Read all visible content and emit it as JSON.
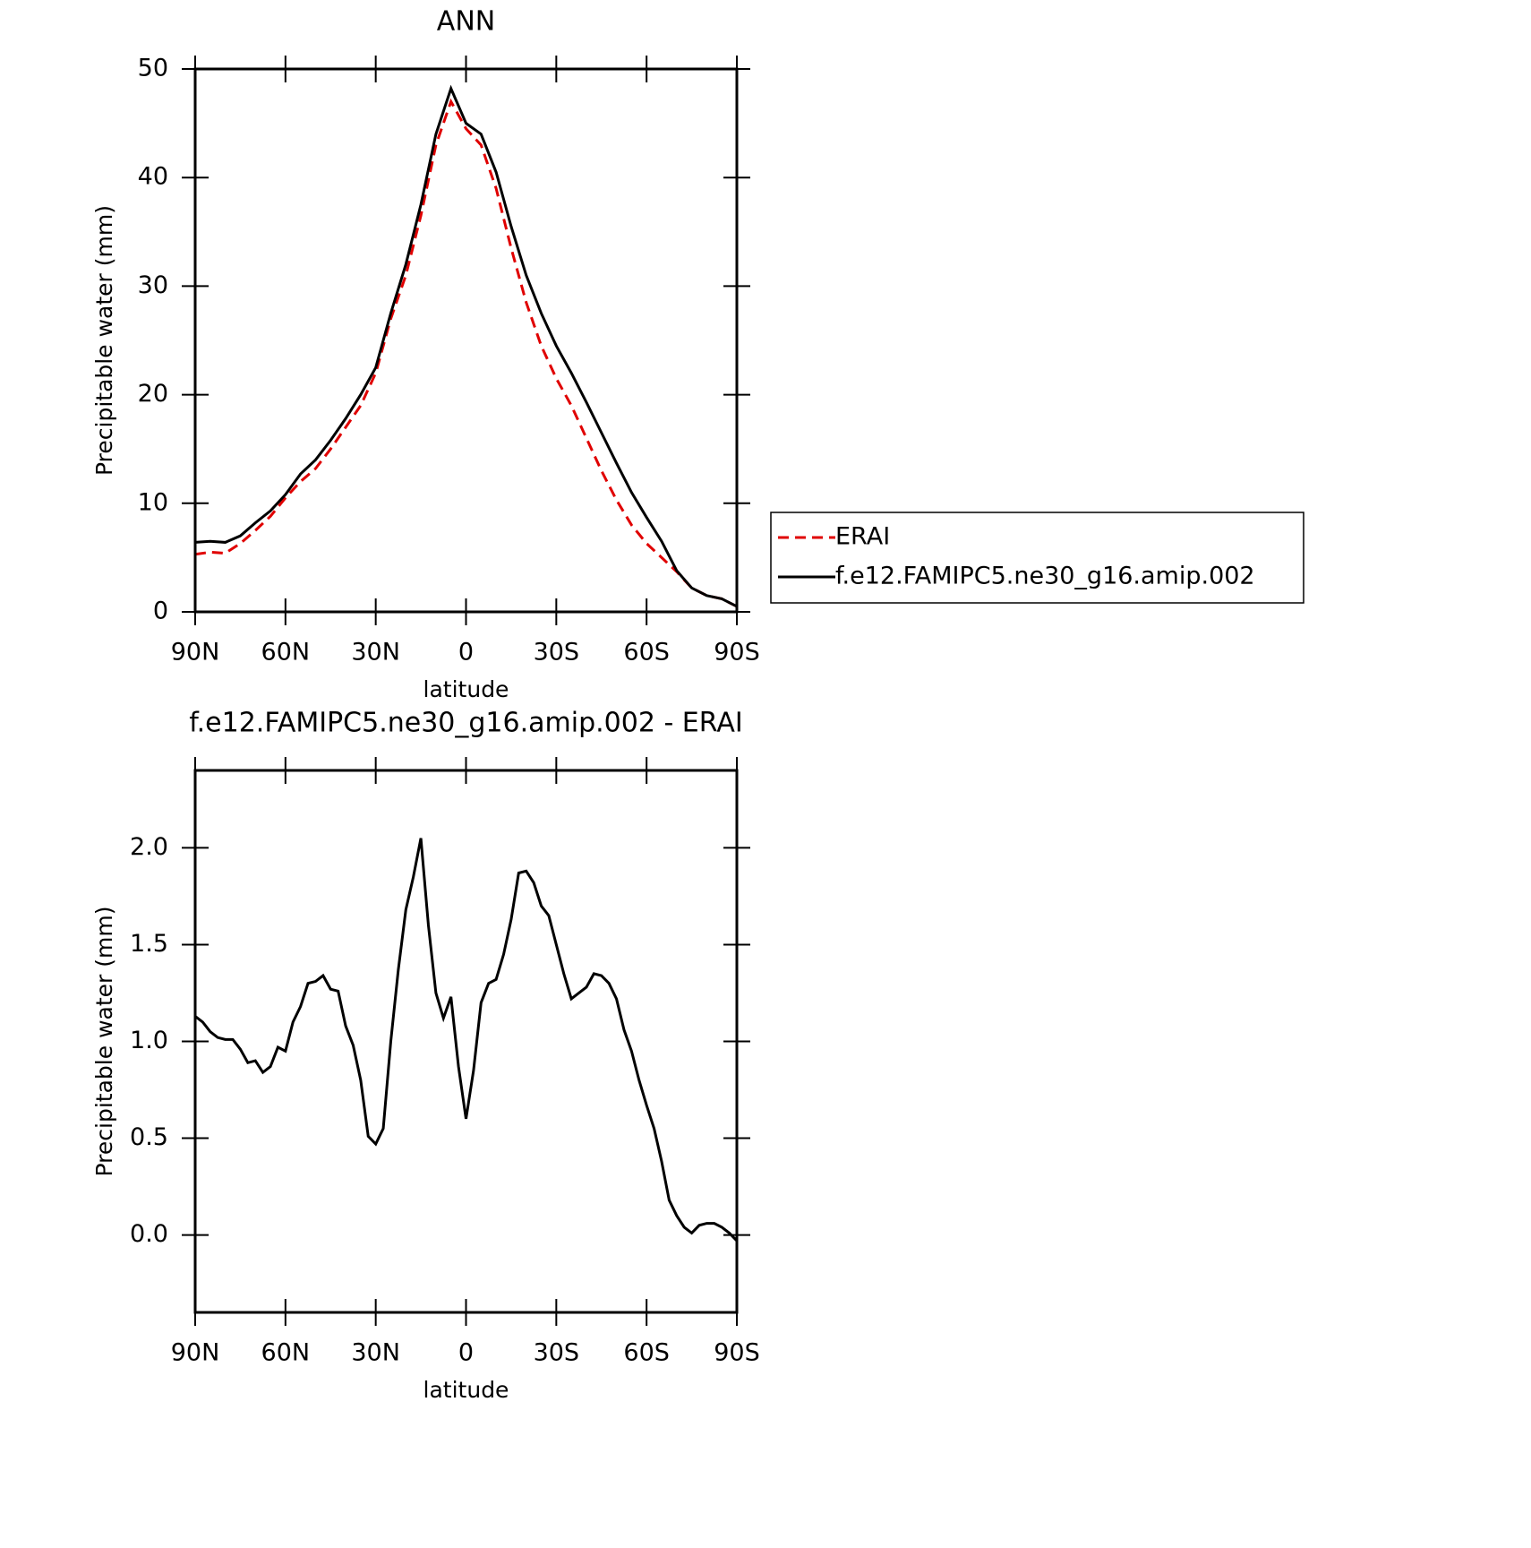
{
  "chart_data": [
    {
      "type": "line",
      "title": "ANN",
      "xlabel": "latitude",
      "ylabel": "Precipitable water (mm)",
      "x": [
        90,
        85,
        80,
        75,
        70,
        65,
        60,
        55,
        50,
        45,
        40,
        35,
        30,
        25,
        20,
        15,
        10,
        5,
        0,
        -5,
        -10,
        -15,
        -20,
        -25,
        -30,
        -35,
        -40,
        -45,
        -50,
        -55,
        -60,
        -65,
        -70,
        -75,
        -80,
        -85,
        -90
      ],
      "series": [
        {
          "name": "ERAI",
          "color": "#e00000",
          "dash": true,
          "values": [
            5.3,
            5.5,
            5.4,
            6.3,
            7.5,
            8.8,
            10.5,
            12.0,
            13.2,
            15.0,
            17.0,
            19.0,
            22.0,
            27.0,
            31.0,
            36.5,
            43.0,
            47.0,
            44.5,
            43.0,
            39.0,
            33.5,
            28.5,
            24.5,
            21.5,
            19.0,
            16.0,
            13.0,
            10.3,
            8.0,
            6.3,
            5.0,
            3.7,
            2.2,
            1.5,
            1.2,
            0.5
          ]
        },
        {
          "name": "f.e12.FAMIPC5.ne30_g16.amip.002",
          "color": "#000000",
          "dash": false,
          "values": [
            6.4,
            6.5,
            6.4,
            7.0,
            8.2,
            9.3,
            10.8,
            12.7,
            14.0,
            15.8,
            17.8,
            20.0,
            22.5,
            27.5,
            32.0,
            37.5,
            44.0,
            48.2,
            45.0,
            44.0,
            40.5,
            35.5,
            31.0,
            27.5,
            24.5,
            22.0,
            19.3,
            16.5,
            13.7,
            11.0,
            8.7,
            6.5,
            3.8,
            2.2,
            1.5,
            1.2,
            0.5
          ]
        }
      ],
      "xlim": [
        90,
        -90
      ],
      "xticks": [
        {
          "value": 90,
          "label": "90N"
        },
        {
          "value": 60,
          "label": "60N"
        },
        {
          "value": 30,
          "label": "30N"
        },
        0,
        {
          "value": -30,
          "label": "30S"
        },
        {
          "value": -60,
          "label": "60S"
        },
        {
          "value": -90,
          "label": "90S"
        }
      ],
      "ylim": [
        0,
        50
      ],
      "yticks": [
        0,
        10,
        20,
        30,
        40,
        50
      ],
      "legend": "right"
    },
    {
      "type": "line",
      "title": "f.e12.FAMIPC5.ne30_g16.amip.002 - ERAI",
      "xlabel": "latitude",
      "ylabel": "Precipitable water (mm)",
      "x": [
        90,
        87.5,
        85,
        82.5,
        80,
        77.5,
        75,
        72.5,
        70,
        67.5,
        65,
        62.5,
        60,
        57.5,
        55,
        52.5,
        50,
        47.5,
        45,
        42.5,
        40,
        37.5,
        35,
        32.5,
        30,
        27.5,
        25,
        22.5,
        20,
        17.5,
        15,
        12.5,
        10,
        7.5,
        5,
        2.5,
        0,
        -2.5,
        -5,
        -7.5,
        -10,
        -12.5,
        -15,
        -17.5,
        -20,
        -22.5,
        -25,
        -27.5,
        -30,
        -32.5,
        -35,
        -37.5,
        -40,
        -42.5,
        -45,
        -47.5,
        -50,
        -52.5,
        -55,
        -57.5,
        -60,
        -62.5,
        -65,
        -67.5,
        -70,
        -72.5,
        -75,
        -77.5,
        -80,
        -82.5,
        -85,
        -87.5,
        -90
      ],
      "values": [
        1.13,
        1.1,
        1.05,
        1.02,
        1.01,
        1.01,
        0.96,
        0.89,
        0.9,
        0.84,
        0.87,
        0.97,
        0.95,
        1.1,
        1.18,
        1.3,
        1.31,
        1.34,
        1.27,
        1.26,
        1.08,
        0.98,
        0.8,
        0.51,
        0.47,
        0.55,
        1.0,
        1.37,
        1.68,
        1.85,
        2.05,
        1.6,
        1.25,
        1.12,
        1.23,
        0.87,
        0.6,
        0.85,
        1.2,
        1.3,
        1.32,
        1.45,
        1.63,
        1.87,
        1.88,
        1.82,
        1.7,
        1.65,
        1.5,
        1.35,
        1.22,
        1.25,
        1.28,
        1.35,
        1.34,
        1.3,
        1.22,
        1.06,
        0.95,
        0.8,
        0.67,
        0.55,
        0.38,
        0.18,
        0.1,
        0.04,
        0.01,
        0.05,
        0.06,
        0.06,
        0.04,
        0.01,
        -0.03
      ],
      "color": "#000000",
      "xlim": [
        90,
        -90
      ],
      "xticks": [
        {
          "value": 90,
          "label": "90N"
        },
        {
          "value": 60,
          "label": "60N"
        },
        {
          "value": 30,
          "label": "30N"
        },
        0,
        {
          "value": -30,
          "label": "30S"
        },
        {
          "value": -60,
          "label": "60S"
        },
        {
          "value": -90,
          "label": "90S"
        }
      ],
      "ylim": [
        -0.4,
        2.4
      ],
      "yticks": [
        {
          "value": 0,
          "label": "0.0"
        },
        0.5,
        {
          "value": 1,
          "label": "1.0"
        },
        1.5,
        {
          "value": 2,
          "label": "2.0"
        }
      ]
    }
  ]
}
